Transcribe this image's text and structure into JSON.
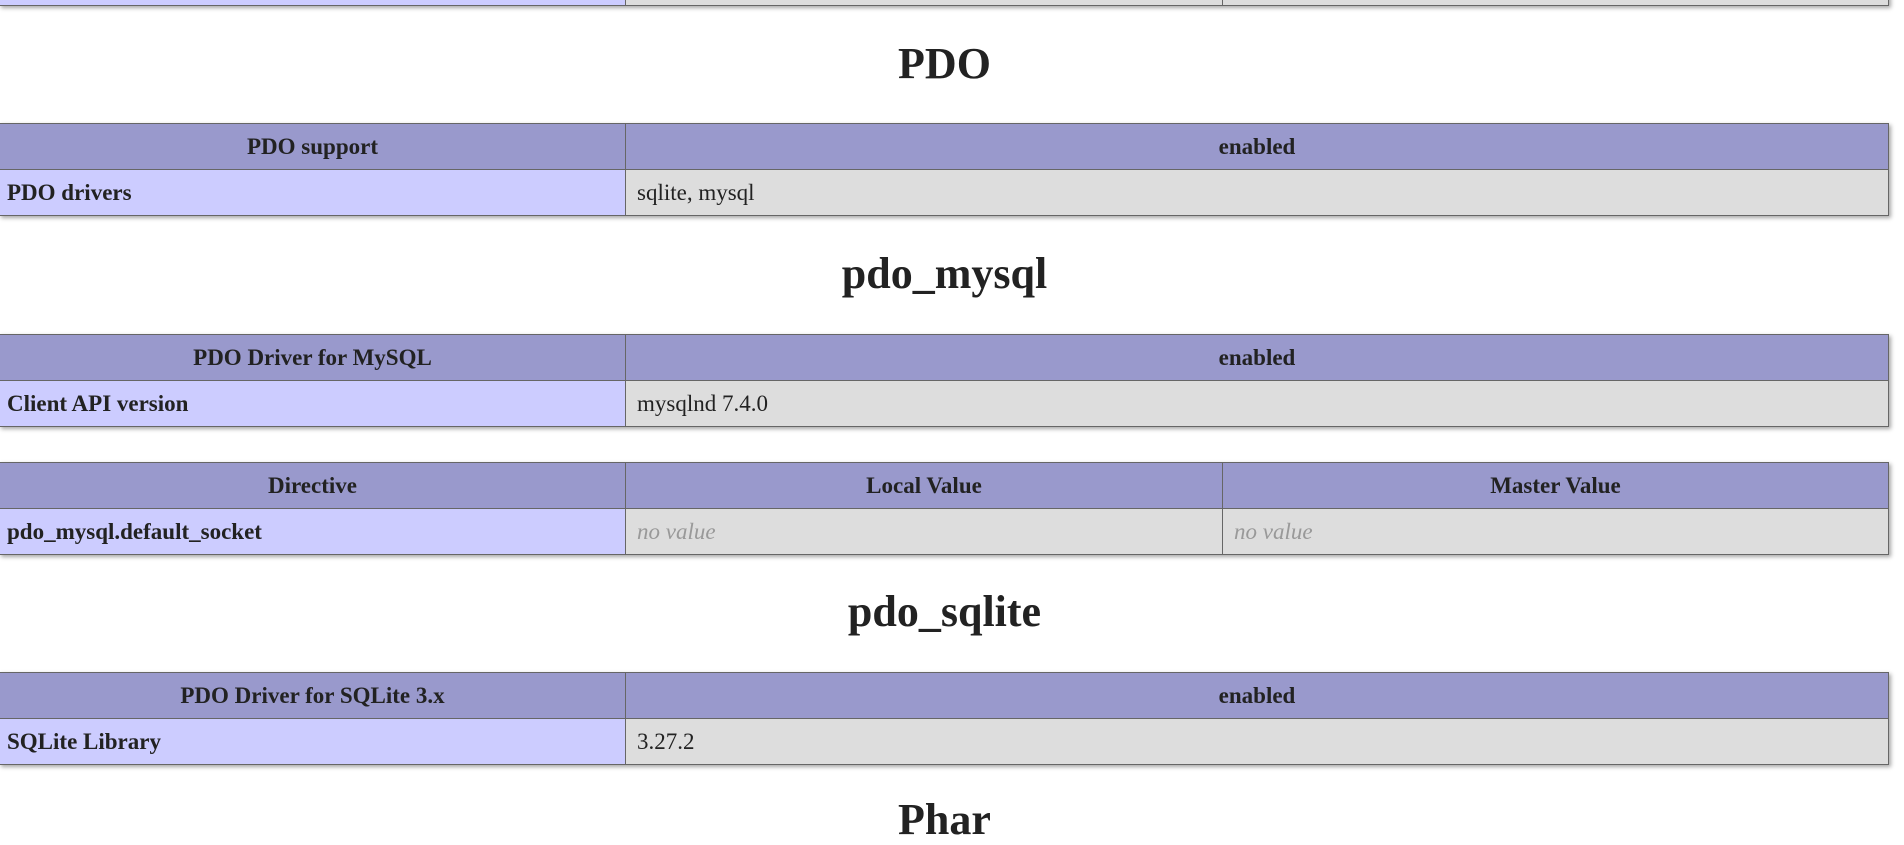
{
  "sections": [
    {
      "title": "PDO",
      "tables": [
        {
          "header": [
            "PDO support",
            "enabled"
          ],
          "rows": [
            [
              "PDO drivers",
              "sqlite, mysql"
            ]
          ]
        }
      ]
    },
    {
      "title": "pdo_mysql",
      "tables": [
        {
          "header": [
            "PDO Driver for MySQL",
            "enabled"
          ],
          "rows": [
            [
              "Client API version",
              "mysqlnd 7.4.0"
            ]
          ]
        },
        {
          "header": [
            "Directive",
            "Local Value",
            "Master Value"
          ],
          "rows": [
            [
              "pdo_mysql.default_socket",
              "no value",
              "no value"
            ]
          ]
        }
      ]
    },
    {
      "title": "pdo_sqlite",
      "tables": [
        {
          "header": [
            "PDO Driver for SQLite 3.x",
            "enabled"
          ],
          "rows": [
            [
              "SQLite Library",
              "3.27.2"
            ]
          ]
        }
      ]
    },
    {
      "title": "Phar",
      "tables": []
    }
  ]
}
